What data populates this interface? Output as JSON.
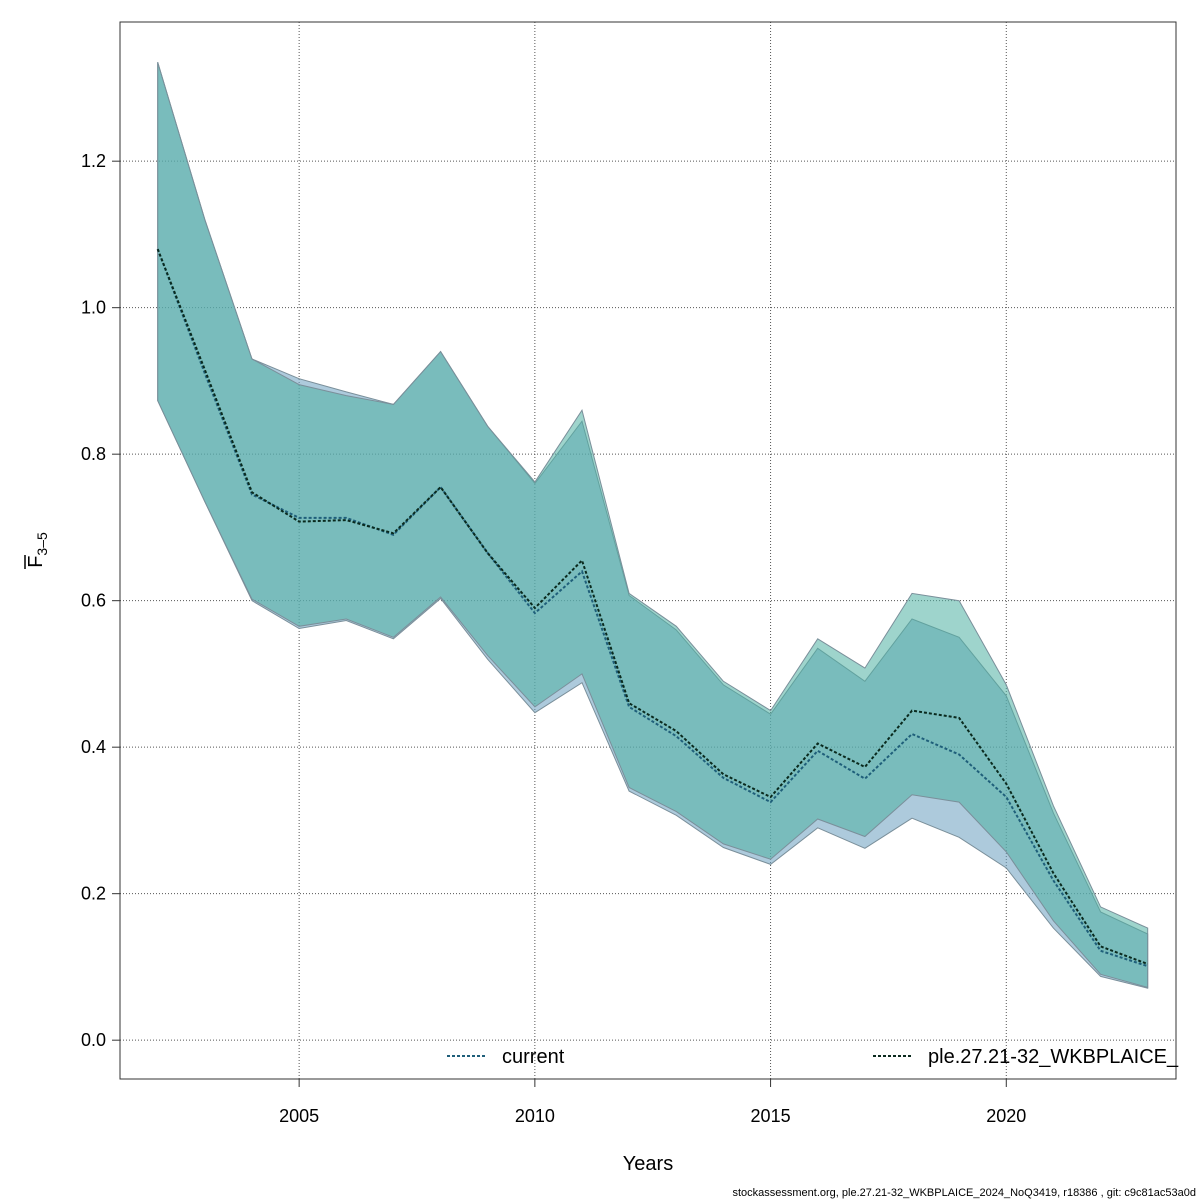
{
  "chart_data": {
    "type": "line",
    "xlabel": "Years",
    "ylabel_main": "F",
    "ylabel_sub": "3–5",
    "xlim": [
      2001.2,
      2023.6
    ],
    "ylim": [
      -0.053,
      1.39
    ],
    "x_ticks": [
      2005,
      2010,
      2015,
      2020
    ],
    "y_ticks": [
      0.0,
      0.2,
      0.4,
      0.6,
      0.8,
      1.0,
      1.2
    ],
    "grid": true,
    "legend_position": "bottom",
    "x": [
      2002,
      2003,
      2004,
      2005,
      2006,
      2007,
      2008,
      2009,
      2010,
      2011,
      2012,
      2013,
      2014,
      2015,
      2016,
      2017,
      2018,
      2019,
      2020,
      2021,
      2022,
      2023
    ],
    "series": [
      {
        "name": "current",
        "line_color": "#1f5f7a",
        "band_color": "#6a9fbf",
        "values": [
          1.08,
          0.91,
          0.745,
          0.713,
          0.713,
          0.69,
          0.755,
          0.665,
          0.583,
          0.64,
          0.455,
          0.415,
          0.358,
          0.325,
          0.395,
          0.357,
          0.418,
          0.39,
          0.332,
          0.218,
          0.122,
          0.101
        ],
        "lower": [
          0.873,
          0.735,
          0.6,
          0.562,
          0.573,
          0.548,
          0.603,
          0.52,
          0.447,
          0.488,
          0.34,
          0.307,
          0.263,
          0.24,
          0.29,
          0.262,
          0.303,
          0.277,
          0.235,
          0.153,
          0.087,
          0.071
        ],
        "upper": [
          1.335,
          1.12,
          0.93,
          0.903,
          0.885,
          0.868,
          0.94,
          0.838,
          0.76,
          0.845,
          0.607,
          0.56,
          0.485,
          0.445,
          0.535,
          0.49,
          0.575,
          0.55,
          0.47,
          0.31,
          0.175,
          0.145
        ]
      },
      {
        "name": "ple.27.21-32_WKBPLAICE_",
        "line_color": "#0a2a1e",
        "band_color": "#4fb0a2",
        "values": [
          1.08,
          0.915,
          0.748,
          0.708,
          0.71,
          0.692,
          0.755,
          0.665,
          0.59,
          0.655,
          0.46,
          0.422,
          0.363,
          0.332,
          0.405,
          0.373,
          0.45,
          0.44,
          0.35,
          0.228,
          0.128,
          0.104
        ],
        "lower": [
          0.873,
          0.735,
          0.602,
          0.565,
          0.575,
          0.55,
          0.605,
          0.525,
          0.455,
          0.5,
          0.345,
          0.312,
          0.268,
          0.247,
          0.302,
          0.278,
          0.335,
          0.325,
          0.257,
          0.163,
          0.09,
          0.072
        ],
        "upper": [
          1.335,
          1.12,
          0.93,
          0.895,
          0.88,
          0.868,
          0.94,
          0.838,
          0.762,
          0.86,
          0.61,
          0.565,
          0.49,
          0.45,
          0.548,
          0.508,
          0.61,
          0.6,
          0.485,
          0.32,
          0.182,
          0.153
        ]
      }
    ]
  },
  "footer_text": "stockassessment.org, ple.27.21-32_WKBPLAICE_2024_NoQ3419, r18386 , git: c9c81ac53a0d"
}
